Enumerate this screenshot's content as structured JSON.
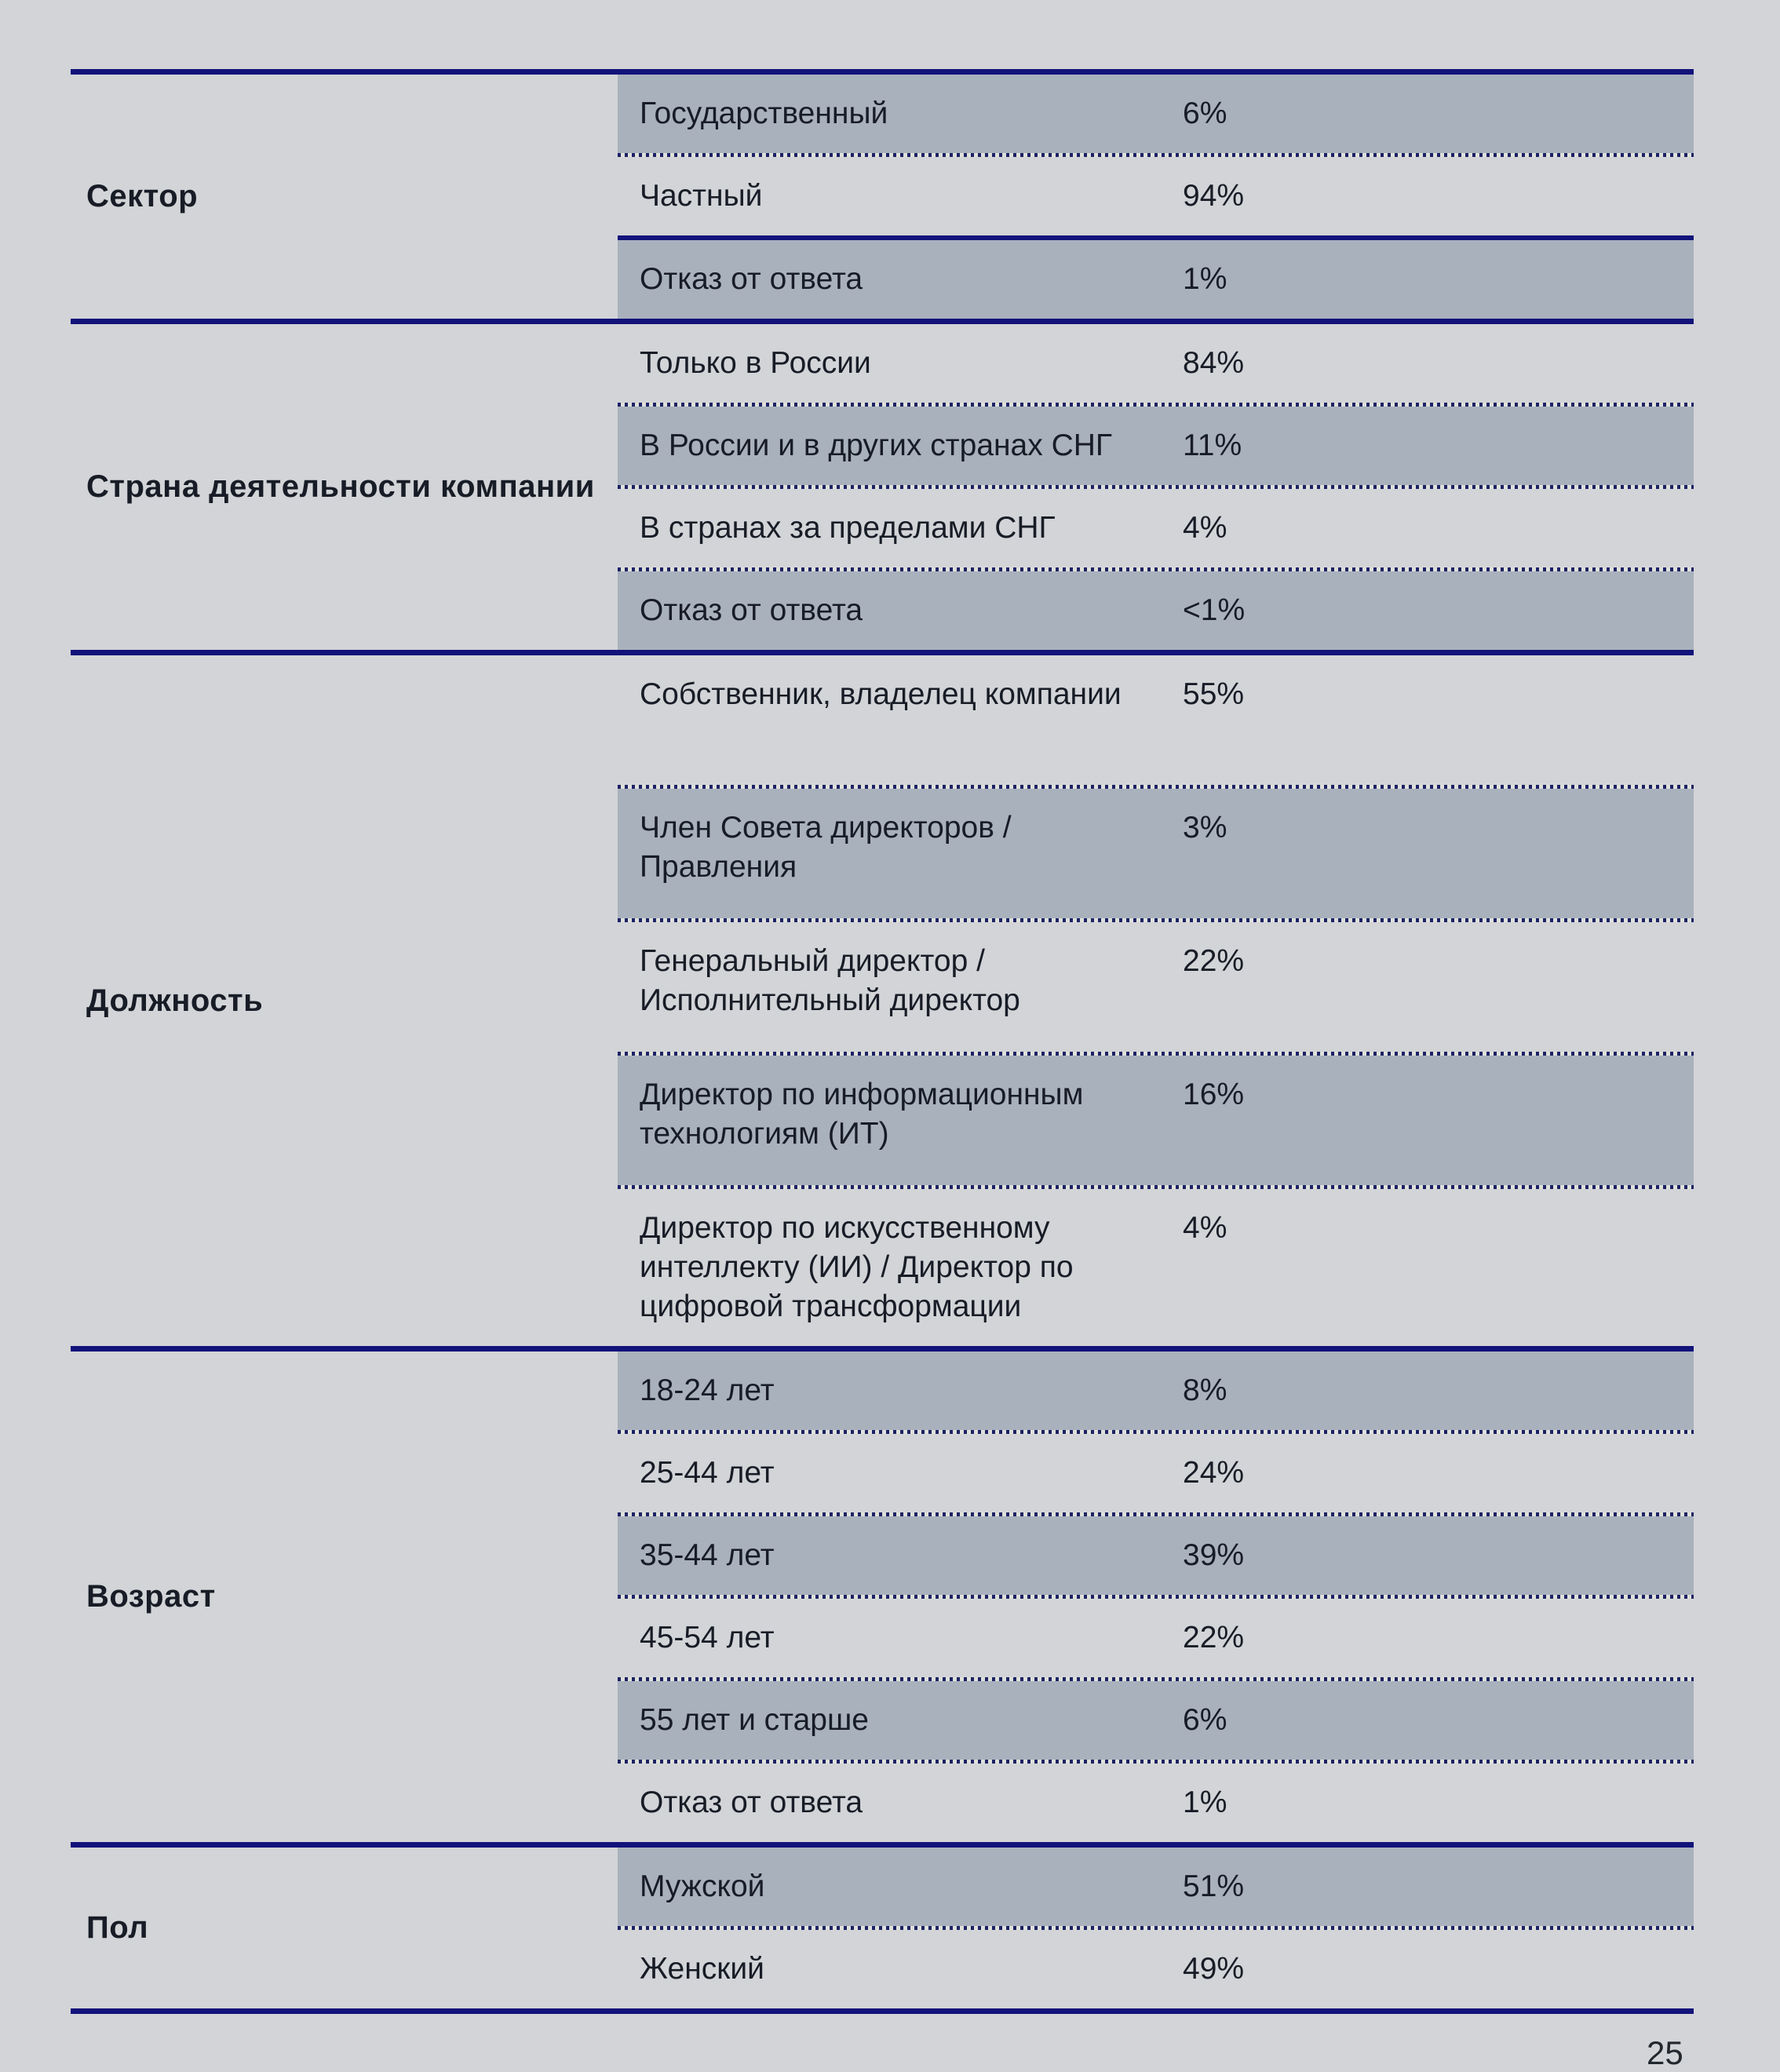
{
  "page": {
    "number": "25",
    "background_color": "#d2d4d7",
    "shaded_row_color": "#a9b1bd",
    "accent_navy_color": "#12127a",
    "text_color": "#171c26"
  },
  "table": {
    "sections": [
      {
        "label": "Сектор",
        "rows": [
          {
            "answer": "Государственный",
            "value": "6%",
            "shaded": true
          },
          {
            "answer": "Частный",
            "value": "94%",
            "shaded": false
          },
          {
            "answer": "Отказ от ответа",
            "value": "1%",
            "shaded": true,
            "separator": "solid"
          }
        ]
      },
      {
        "label": "Страна деятельности компании",
        "rows": [
          {
            "answer": "Только в России",
            "value": "84%",
            "shaded": false
          },
          {
            "answer": "В России и в других странах СНГ",
            "value": "11%",
            "shaded": true
          },
          {
            "answer": "В странах за пределами СНГ",
            "value": "4%",
            "shaded": false
          },
          {
            "answer": "Отказ от ответа",
            "value": "<1%",
            "shaded": true
          }
        ]
      },
      {
        "label": "Должность",
        "rows": [
          {
            "answer": "Собственник, владелец компании",
            "value": "55%",
            "shaded": false
          },
          {
            "answer": "Член Совета директоров / Правления",
            "value": "3%",
            "shaded": true
          },
          {
            "answer": "Генеральный директор / Исполнительный директор",
            "value": "22%",
            "shaded": false
          },
          {
            "answer": "Директор по информационным технологиям (ИТ)",
            "value": "16%",
            "shaded": true
          },
          {
            "answer": "Директор по искусственному интеллекту (ИИ) / Директор по цифровой трансформации",
            "value": "4%",
            "shaded": false
          }
        ]
      },
      {
        "label": "Возраст",
        "rows": [
          {
            "answer": "18-24 лет",
            "value": "8%",
            "shaded": true
          },
          {
            "answer": "25-44 лет",
            "value": "24%",
            "shaded": false
          },
          {
            "answer": "35-44 лет",
            "value": "39%",
            "shaded": true
          },
          {
            "answer": "45-54 лет",
            "value": "22%",
            "shaded": false
          },
          {
            "answer": "55 лет и старше",
            "value": "6%",
            "shaded": true
          },
          {
            "answer": "Отказ от ответа",
            "value": "1%",
            "shaded": false
          }
        ]
      },
      {
        "label": "Пол",
        "rows": [
          {
            "answer": "Мужской",
            "value": "51%",
            "shaded": true
          },
          {
            "answer": "Женский",
            "value": "49%",
            "shaded": false
          }
        ]
      }
    ]
  }
}
